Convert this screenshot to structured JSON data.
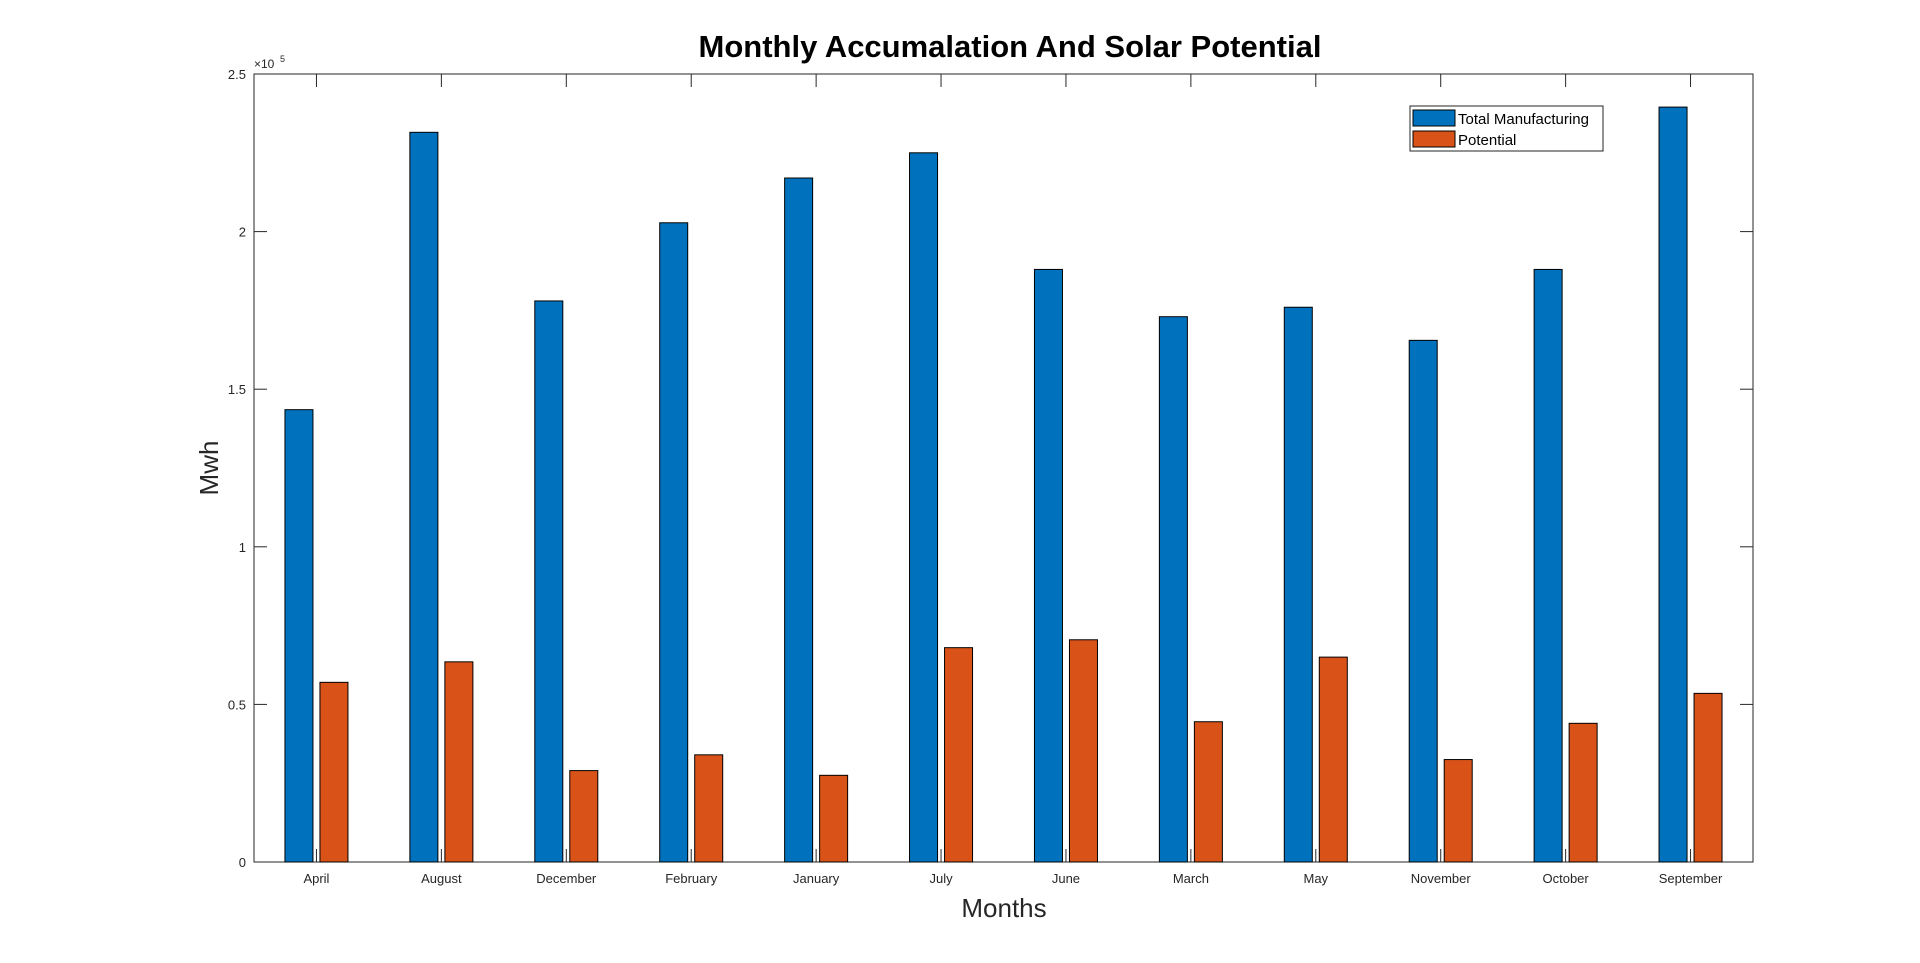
{
  "chart_data": {
    "type": "bar",
    "title": "Monthly Accumalation And Solar Potential",
    "xlabel": "Months",
    "ylabel": "Mwh",
    "exponent_label": "×10",
    "exponent_power": "5",
    "categories": [
      "April",
      "August",
      "December",
      "February",
      "January",
      "July",
      "June",
      "March",
      "May",
      "November",
      "October",
      "September"
    ],
    "series": [
      {
        "name": "Total Manufacturing",
        "color": "#0072BD",
        "values": [
          143500,
          231500,
          178000,
          202800,
          217000,
          225000,
          188000,
          173000,
          176000,
          165500,
          188000,
          239500
        ]
      },
      {
        "name": "Potential",
        "color": "#D95319",
        "values": [
          57000,
          63500,
          29000,
          34000,
          27500,
          68000,
          70500,
          44500,
          65000,
          32500,
          44000,
          53500
        ]
      }
    ],
    "ylim": [
      0,
      250000
    ],
    "yticks": [
      0,
      50000,
      100000,
      150000,
      200000,
      250000
    ],
    "ytick_labels": [
      "0",
      "0.5",
      "1",
      "1.5",
      "2",
      "2.5"
    ],
    "legend_position": "top-right",
    "grid": false
  }
}
